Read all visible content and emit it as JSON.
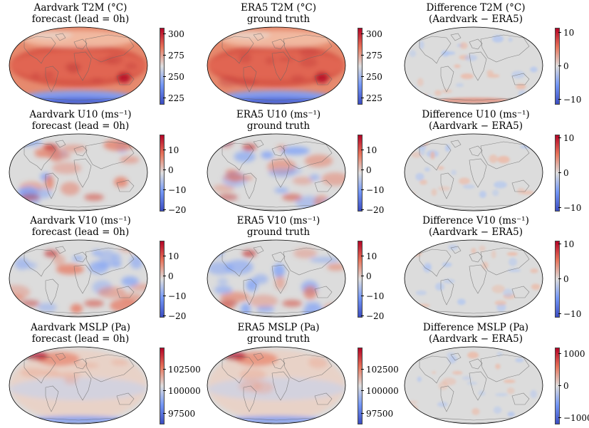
{
  "colorbar_colors": [
    "#b40426",
    "#dddddd",
    "#3b4cc0"
  ],
  "rows": [
    {
      "panels": [
        {
          "title1": "Aardvark T2M (°C)",
          "title2": "forecast (lead = 0h)",
          "kind": "temp",
          "ticks": [
            "300",
            "275",
            "250",
            "225"
          ],
          "tick_pos": [
            0.08,
            0.36,
            0.64,
            0.92
          ]
        },
        {
          "title1": "ERA5 T2M (°C)",
          "title2": "ground truth",
          "kind": "temp",
          "ticks": [
            "300",
            "275",
            "250",
            "225"
          ],
          "tick_pos": [
            0.08,
            0.36,
            0.64,
            0.92
          ]
        },
        {
          "title1": "Difference T2M (°C)",
          "title2": "(Aardvark − ERA5)",
          "kind": "diff",
          "ticks": [
            "10",
            "0",
            "−10"
          ],
          "tick_pos": [
            0.06,
            0.5,
            0.94
          ]
        }
      ]
    },
    {
      "panels": [
        {
          "title1": "Aardvark U10 (ms⁻¹)",
          "title2": "forecast (lead = 0h)",
          "kind": "wind",
          "ticks": [
            "10",
            "0",
            "−10",
            "−20"
          ],
          "tick_pos": [
            0.2,
            0.46,
            0.73,
            0.99
          ]
        },
        {
          "title1": "ERA5 U10 (ms⁻¹)",
          "title2": "ground truth",
          "kind": "wind",
          "ticks": [
            "10",
            "0",
            "−10",
            "−20"
          ],
          "tick_pos": [
            0.2,
            0.46,
            0.73,
            0.99
          ]
        },
        {
          "title1": "Difference U10 (ms⁻¹)",
          "title2": "(Aardvark − ERA5)",
          "kind": "diff",
          "ticks": [
            "10",
            "0",
            "−10"
          ],
          "tick_pos": [
            0.04,
            0.5,
            0.96
          ]
        }
      ]
    },
    {
      "panels": [
        {
          "title1": "Aardvark V10 (ms⁻¹)",
          "title2": "forecast (lead = 0h)",
          "kind": "wind",
          "ticks": [
            "10",
            "0",
            "−10",
            "−20"
          ],
          "tick_pos": [
            0.2,
            0.46,
            0.73,
            0.99
          ]
        },
        {
          "title1": "ERA5 V10 (ms⁻¹)",
          "title2": "ground truth",
          "kind": "wind",
          "ticks": [
            "10",
            "0",
            "−10",
            "−20"
          ],
          "tick_pos": [
            0.2,
            0.46,
            0.73,
            0.99
          ]
        },
        {
          "title1": "Difference V10 (ms⁻¹)",
          "title2": "(Aardvark − ERA5)",
          "kind": "diff",
          "ticks": [
            "10",
            "0",
            "−10"
          ],
          "tick_pos": [
            0.04,
            0.5,
            0.96
          ]
        }
      ]
    },
    {
      "panels": [
        {
          "title1": "Aardvark MSLP (Pa)",
          "title2": "forecast (lead = 0h)",
          "kind": "pres",
          "ticks": [
            "102500",
            "100000",
            "97500"
          ],
          "tick_pos": [
            0.28,
            0.57,
            0.87
          ]
        },
        {
          "title1": "ERA5 MSLP (Pa)",
          "title2": "ground truth",
          "kind": "pres",
          "ticks": [
            "102500",
            "100000",
            "97500"
          ],
          "tick_pos": [
            0.28,
            0.57,
            0.87
          ]
        },
        {
          "title1": "Difference MSLP (Pa)",
          "title2": "(Aardvark − ERA5)",
          "kind": "diff",
          "ticks": [
            "1000",
            "0",
            "−1000"
          ],
          "tick_pos": [
            0.08,
            0.5,
            0.92
          ]
        }
      ]
    }
  ]
}
